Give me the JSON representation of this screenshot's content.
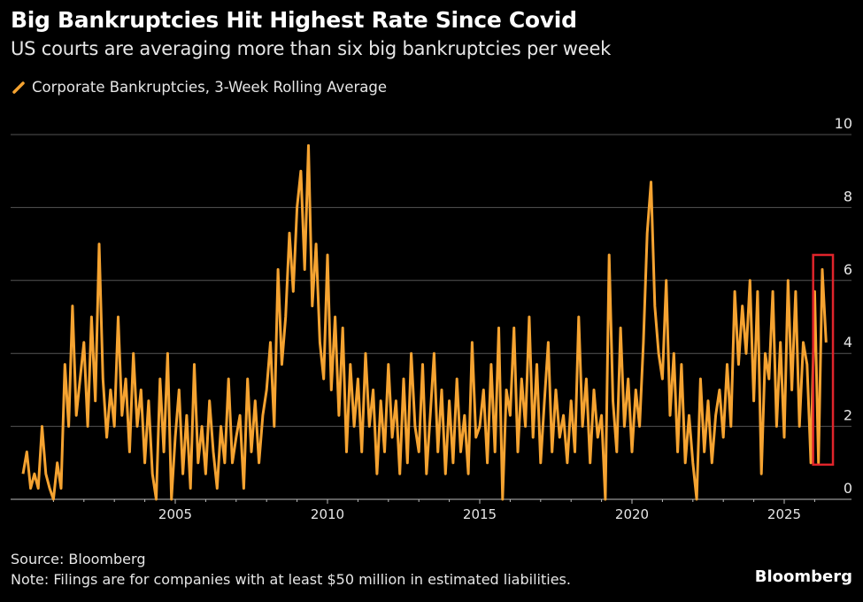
{
  "chart_data": {
    "type": "line",
    "title": "Big Bankruptcies Hit Highest Rate Since Covid",
    "subtitle": "US courts are averaging more than six big bankruptcies per week",
    "legend": [
      {
        "label": "Corporate Bankruptcies, 3-Week Rolling Average",
        "color": "#f5a331"
      }
    ],
    "legend_placement": "top-left",
    "xlabel": "",
    "ylabel": "",
    "x_start": 2000,
    "x_step": 0.125,
    "xlim": [
      1999.8,
      2026.6
    ],
    "ylim": [
      0,
      10
    ],
    "x_ticks": [
      2005,
      2010,
      2015,
      2020,
      2025
    ],
    "y_ticks": [
      0,
      2,
      4,
      6,
      8,
      10
    ],
    "y_axis_side": "right",
    "grid": true,
    "highlight_box": {
      "x": [
        2025.95,
        2026.6
      ],
      "y": [
        0.95,
        6.7
      ],
      "color": "#e0242b"
    },
    "series": [
      {
        "name": "Corporate Bankruptcies, 3-Week Rolling Average",
        "color": "#f5a331",
        "values": [
          0.7,
          1.3,
          0.3,
          0.7,
          0.3,
          2.0,
          0.7,
          0.3,
          0.0,
          1.0,
          0.3,
          3.7,
          2.0,
          5.3,
          2.3,
          3.3,
          4.3,
          2.0,
          5.0,
          2.7,
          7.0,
          3.3,
          1.7,
          3.0,
          2.0,
          5.0,
          2.3,
          3.3,
          1.3,
          4.0,
          2.0,
          3.0,
          1.0,
          2.7,
          0.7,
          0.0,
          3.3,
          1.3,
          4.0,
          0.0,
          1.7,
          3.0,
          0.7,
          2.3,
          0.3,
          3.7,
          1.0,
          2.0,
          0.7,
          2.7,
          1.3,
          0.3,
          2.0,
          1.0,
          3.3,
          1.0,
          1.7,
          2.3,
          0.3,
          3.3,
          1.3,
          2.7,
          1.0,
          2.3,
          3.0,
          4.3,
          2.0,
          6.3,
          3.7,
          5.0,
          7.3,
          5.7,
          8.0,
          9.0,
          6.3,
          9.7,
          5.3,
          7.0,
          4.3,
          3.3,
          6.7,
          3.0,
          5.0,
          2.3,
          4.7,
          1.3,
          3.7,
          2.0,
          3.3,
          1.3,
          4.0,
          2.0,
          3.0,
          0.7,
          2.7,
          1.3,
          3.7,
          1.7,
          2.7,
          0.7,
          3.3,
          1.0,
          4.0,
          2.0,
          1.3,
          3.7,
          0.7,
          2.3,
          4.0,
          1.3,
          3.0,
          0.7,
          2.7,
          1.0,
          3.3,
          1.3,
          2.3,
          0.7,
          4.3,
          1.7,
          2.0,
          3.0,
          1.0,
          3.7,
          1.3,
          4.7,
          0.0,
          3.0,
          2.3,
          4.7,
          1.3,
          3.3,
          2.0,
          5.0,
          1.7,
          3.7,
          1.0,
          2.7,
          4.3,
          1.3,
          3.0,
          1.7,
          2.3,
          1.0,
          2.7,
          1.3,
          5.0,
          2.0,
          3.3,
          1.0,
          3.0,
          1.7,
          2.3,
          0.0,
          6.7,
          2.7,
          1.3,
          4.7,
          2.0,
          3.3,
          1.3,
          3.0,
          2.0,
          4.3,
          7.3,
          8.7,
          5.3,
          4.0,
          3.3,
          6.0,
          2.3,
          4.0,
          1.3,
          3.7,
          1.0,
          2.3,
          1.0,
          0.0,
          3.3,
          1.3,
          2.7,
          1.0,
          2.3,
          3.0,
          1.7,
          3.7,
          2.0,
          5.7,
          3.7,
          5.3,
          4.0,
          6.0,
          2.7,
          5.7,
          0.7,
          4.0,
          3.3,
          5.7,
          2.0,
          4.3,
          1.7,
          6.0,
          3.0,
          5.7,
          2.0,
          4.3,
          3.7,
          1.0,
          5.7,
          1.0,
          6.3,
          4.3
        ]
      }
    ],
    "source": "Source: Bloomberg",
    "note": "Note: Filings are for companies with at least $50 million in estimated liabilities.",
    "brand": "Bloomberg"
  }
}
